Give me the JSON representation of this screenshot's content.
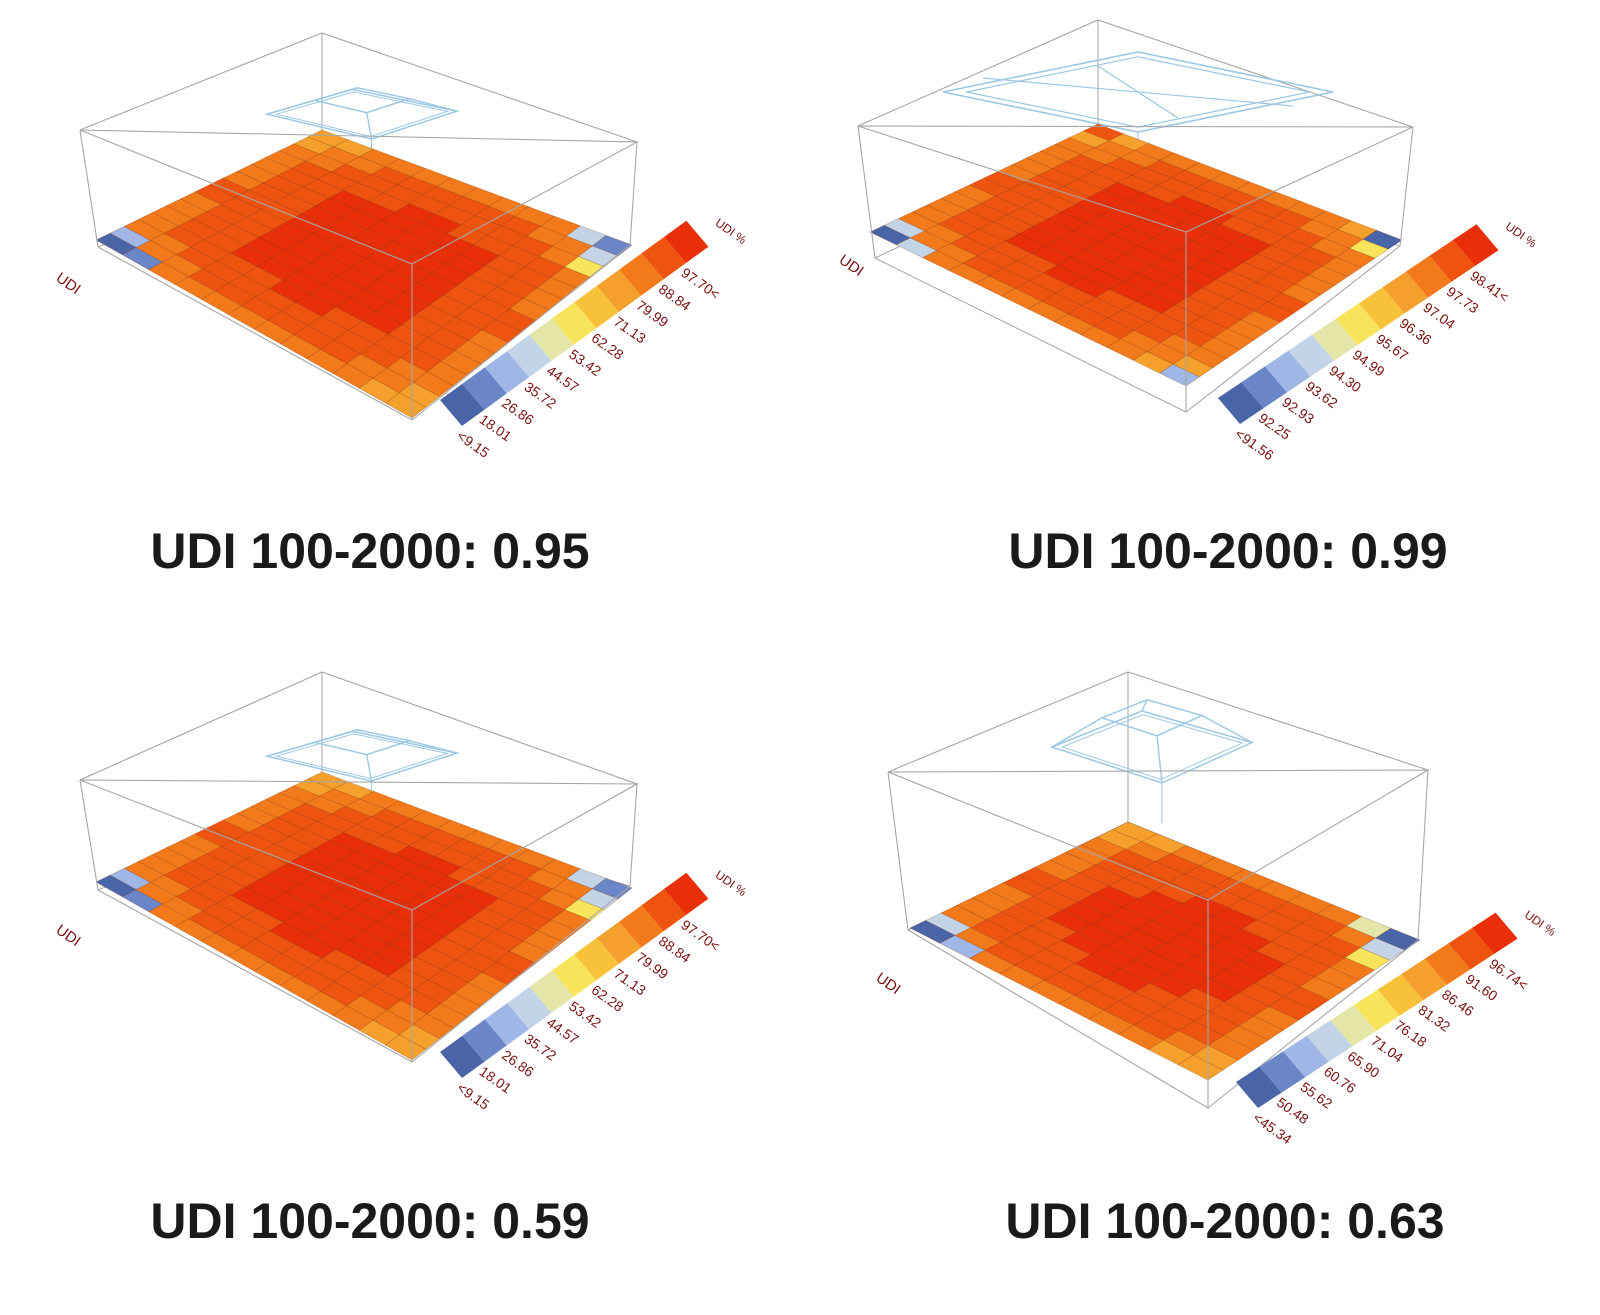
{
  "figure": {
    "panels": [
      {
        "caption": "UDI 100-2000: 0.95",
        "axis_label": "UDI",
        "legend_title": "UDI %",
        "legend_labels": [
          "<9.15",
          "18.01",
          "26.86",
          "35.72",
          "44.57",
          "53.42",
          "62.28",
          "71.13",
          "79.99",
          "88.84",
          "97.70<"
        ],
        "skylight": "small-pyramid"
      },
      {
        "caption": "UDI 100-2000: 0.99",
        "axis_label": "UDI",
        "legend_title": "UDI %",
        "legend_labels": [
          "<91.56",
          "92.25",
          "92.93",
          "93.62",
          "94.30",
          "94.99",
          "95.67",
          "96.36",
          "97.04",
          "97.73",
          "98.41<"
        ],
        "skylight": "wide-monitor"
      },
      {
        "caption": "UDI 100-2000: 0.59",
        "axis_label": "UDI",
        "legend_title": "UDI %",
        "legend_labels": [
          "<9.15",
          "18.01",
          "26.86",
          "35.72",
          "44.57",
          "53.42",
          "62.28",
          "71.13",
          "79.99",
          "88.84",
          "97.70<"
        ],
        "skylight": "small-pyramid"
      },
      {
        "caption": "UDI 100-2000: 0.63",
        "axis_label": "UDI",
        "legend_title": "UDI %",
        "legend_labels": [
          "<45.34",
          "50.48",
          "55.62",
          "60.76",
          "65.90",
          "71.04",
          "76.18",
          "81.32",
          "86.46",
          "91.60",
          "96.74<"
        ],
        "skylight": "tall-pyramid"
      }
    ]
  },
  "colors": {
    "scale": [
      "#4a64a8",
      "#6a86c8",
      "#9fb6e6",
      "#c2d4e6",
      "#e4e6a8",
      "#f7e45a",
      "#f7c23a",
      "#f5a02c",
      "#f27a1a",
      "#ee5410",
      "#e82f08"
    ],
    "box_edge": "#a6a6a6",
    "skylight_edge": "#9cc8e4",
    "axis_text": "#7a1010",
    "caption_text": "#1a1a1a"
  },
  "chart_data": [
    {
      "type": "heatmap",
      "title": "UDI 100-2000: 0.95",
      "label": "UDI",
      "legend_title": "UDI %",
      "legend_bins": [
        "<9.15",
        "18.01",
        "26.86",
        "35.72",
        "44.57",
        "53.42",
        "62.28",
        "71.13",
        "79.99",
        "88.84",
        "97.70<"
      ],
      "grid": [
        16,
        12
      ],
      "pattern": "high (97.70<) in centre, falling toward the walls; lowest (<9.15) in two corners",
      "min_bin": "<9.15",
      "max_bin": "97.70<"
    },
    {
      "type": "heatmap",
      "title": "UDI 100-2000: 0.99",
      "label": "UDI",
      "legend_title": "UDI %",
      "legend_bins": [
        "<91.56",
        "92.25",
        "92.93",
        "93.62",
        "94.30",
        "94.99",
        "95.67",
        "96.36",
        "97.04",
        "97.73",
        "98.41<"
      ],
      "grid": [
        16,
        12
      ],
      "pattern": "nearly uniform high values; single low cells at three corners",
      "min_bin": "<91.56",
      "max_bin": "98.41<"
    },
    {
      "type": "heatmap",
      "title": "UDI 100-2000: 0.59",
      "label": "UDI",
      "legend_title": "UDI %",
      "legend_bins": [
        "<9.15",
        "18.01",
        "26.86",
        "35.72",
        "44.57",
        "53.42",
        "62.28",
        "71.13",
        "79.99",
        "88.84",
        "97.70<"
      ],
      "grid": [
        16,
        12
      ],
      "pattern": "high (97.70<) in centre, falling toward the walls; lowest (<9.15) in two corners",
      "min_bin": "<9.15",
      "max_bin": "97.70<"
    },
    {
      "type": "heatmap",
      "title": "UDI 100-2000: 0.63",
      "label": "UDI",
      "legend_title": "UDI %",
      "legend_bins": [
        "<45.34",
        "50.48",
        "55.62",
        "60.76",
        "65.90",
        "71.04",
        "76.18",
        "81.32",
        "86.46",
        "91.60",
        "96.74<"
      ],
      "grid": [
        14,
        10
      ],
      "pattern": "high (96.74<) in centre, falling toward the walls; lowest (<45.34) in two corners",
      "min_bin": "<45.34",
      "max_bin": "96.74<"
    }
  ]
}
